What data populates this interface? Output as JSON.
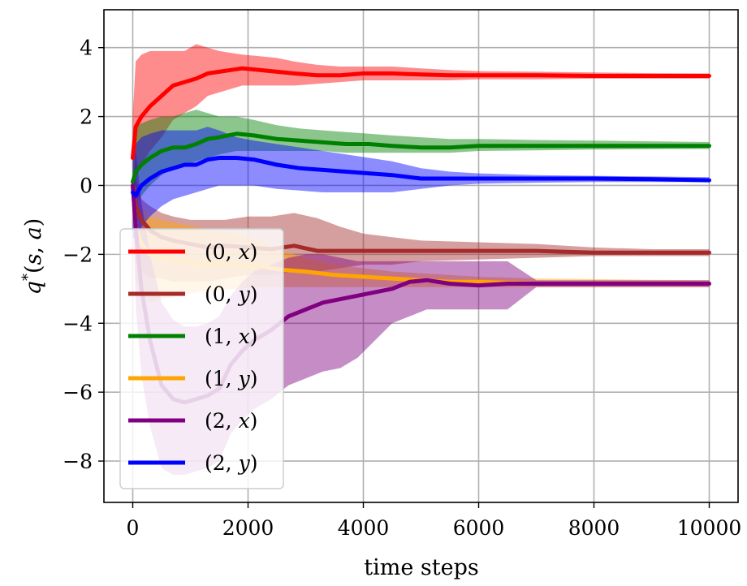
{
  "chart_data": {
    "type": "line",
    "title": "",
    "xlabel": "time steps",
    "ylabel": "q*(s, a)",
    "xlim": [
      -500,
      10500
    ],
    "ylim": [
      -9.2,
      5.1
    ],
    "xticks": [
      0,
      2000,
      4000,
      6000,
      8000,
      10000
    ],
    "yticks": [
      4,
      2,
      0,
      -2,
      -4,
      -6,
      -8
    ],
    "xtick_labels": [
      "0",
      "2000",
      "4000",
      "6000",
      "8000",
      "10000"
    ],
    "ytick_labels": [
      "4",
      "2",
      "0",
      "−2",
      "−4",
      "−6",
      "−8"
    ],
    "grid": true,
    "legend_position": "lower-left",
    "series": [
      {
        "name": "(0,x)",
        "color": "#ff0000",
        "x": [
          0,
          50,
          150,
          300,
          500,
          700,
          900,
          1100,
          1300,
          1500,
          1700,
          1900,
          2200,
          2500,
          2800,
          3200,
          3600,
          4000,
          4500,
          5000,
          5500,
          6000,
          7000,
          8000,
          9000,
          10000
        ],
        "y": [
          0.8,
          1.7,
          2.0,
          2.3,
          2.6,
          2.9,
          3.0,
          3.1,
          3.25,
          3.3,
          3.35,
          3.4,
          3.35,
          3.3,
          3.25,
          3.2,
          3.2,
          3.25,
          3.25,
          3.22,
          3.2,
          3.2,
          3.2,
          3.18,
          3.18,
          3.18
        ],
        "lower": [
          -1.0,
          0.2,
          0.6,
          1.0,
          1.4,
          1.9,
          2.1,
          2.3,
          2.6,
          2.7,
          2.8,
          2.9,
          2.9,
          2.9,
          2.9,
          2.95,
          3.0,
          3.05,
          3.05,
          3.05,
          3.05,
          3.08,
          3.08,
          3.1,
          3.1,
          3.1
        ],
        "upper": [
          2.0,
          3.6,
          3.8,
          3.9,
          3.9,
          3.9,
          3.9,
          4.1,
          4.0,
          3.9,
          3.85,
          3.8,
          3.75,
          3.7,
          3.6,
          3.5,
          3.45,
          3.45,
          3.45,
          3.4,
          3.35,
          3.32,
          3.3,
          3.28,
          3.26,
          3.25
        ]
      },
      {
        "name": "(0,y)",
        "color": "#a52a2a",
        "x": [
          0,
          50,
          150,
          300,
          500,
          700,
          1000,
          1300,
          1600,
          2000,
          2400,
          2800,
          3200,
          3600,
          4000,
          4500,
          5000,
          6000,
          7000,
          8000,
          9000,
          10000
        ],
        "y": [
          0,
          -0.6,
          -1.0,
          -1.3,
          -1.5,
          -1.6,
          -1.7,
          -1.8,
          -1.75,
          -1.8,
          -1.85,
          -1.75,
          -1.9,
          -1.9,
          -1.9,
          -1.9,
          -1.9,
          -1.9,
          -1.9,
          -1.95,
          -1.95,
          -1.95
        ],
        "lower": [
          0,
          -2.2,
          -2.5,
          -2.7,
          -2.7,
          -2.8,
          -2.8,
          -2.8,
          -2.7,
          -2.6,
          -2.6,
          -2.5,
          -2.5,
          -2.4,
          -2.3,
          -2.3,
          -2.2,
          -2.15,
          -2.1,
          -2.05,
          -2.05,
          -2.05
        ],
        "upper": [
          0,
          0.2,
          -0.4,
          -0.6,
          -0.8,
          -0.9,
          -1.0,
          -1.0,
          -1.0,
          -0.9,
          -0.9,
          -0.8,
          -0.95,
          -1.2,
          -1.4,
          -1.5,
          -1.6,
          -1.65,
          -1.7,
          -1.8,
          -1.85,
          -1.85
        ]
      },
      {
        "name": "(1,x)",
        "color": "#008000",
        "x": [
          0,
          50,
          150,
          300,
          500,
          700,
          900,
          1100,
          1300,
          1500,
          1800,
          2100,
          2500,
          2900,
          3300,
          3700,
          4100,
          4500,
          5000,
          5500,
          6000,
          7000,
          8000,
          9000,
          10000
        ],
        "y": [
          0.1,
          0.4,
          0.6,
          0.8,
          1.0,
          1.1,
          1.1,
          1.2,
          1.35,
          1.4,
          1.5,
          1.45,
          1.35,
          1.3,
          1.25,
          1.2,
          1.2,
          1.15,
          1.1,
          1.1,
          1.15,
          1.15,
          1.15,
          1.15,
          1.15
        ],
        "lower": [
          -0.8,
          -0.5,
          -0.3,
          0.0,
          0.3,
          0.5,
          0.6,
          0.7,
          0.8,
          0.9,
          1.0,
          1.0,
          1.0,
          1.0,
          1.0,
          0.95,
          0.95,
          0.95,
          0.95,
          0.95,
          1.0,
          1.02,
          1.04,
          1.05,
          1.06
        ],
        "upper": [
          1.0,
          1.7,
          1.8,
          1.9,
          2.0,
          2.0,
          2.1,
          2.2,
          2.1,
          2.0,
          2.0,
          1.9,
          1.75,
          1.65,
          1.6,
          1.55,
          1.5,
          1.45,
          1.4,
          1.35,
          1.35,
          1.32,
          1.3,
          1.28,
          1.26
        ]
      },
      {
        "name": "(1,y)",
        "color": "#ffa500",
        "x": [
          0,
          50,
          150,
          300,
          500,
          800,
          1100,
          1400,
          1800,
          2200,
          2600,
          3000,
          3500,
          4000,
          4500,
          5000,
          5500,
          6000,
          7000,
          8000,
          9000,
          10000
        ],
        "y": [
          0,
          -1.2,
          -1.7,
          -2.0,
          -2.1,
          -2.2,
          -2.25,
          -2.3,
          -2.3,
          -2.35,
          -2.45,
          -2.5,
          -2.6,
          -2.65,
          -2.7,
          -2.75,
          -2.8,
          -2.8,
          -2.85,
          -2.85,
          -2.85,
          -2.85
        ],
        "lower": [
          0,
          -2.8,
          -3.2,
          -3.4,
          -3.3,
          -3.2,
          -3.1,
          -3.05,
          -3.0,
          -2.95,
          -2.95,
          -2.95,
          -2.95,
          -2.95,
          -2.95,
          -2.95,
          -2.95,
          -2.95,
          -2.95,
          -2.95,
          -2.95,
          -2.95
        ],
        "upper": [
          0,
          0.0,
          -0.6,
          -0.9,
          -1.0,
          -1.1,
          -1.2,
          -1.3,
          -1.4,
          -1.6,
          -1.9,
          -2.1,
          -2.3,
          -2.4,
          -2.5,
          -2.55,
          -2.6,
          -2.65,
          -2.7,
          -2.72,
          -2.74,
          -2.75
        ]
      },
      {
        "name": "(2,x)",
        "color": "#800080",
        "x": [
          0,
          50,
          150,
          300,
          500,
          700,
          900,
          1100,
          1300,
          1500,
          1700,
          1900,
          2100,
          2400,
          2700,
          3000,
          3300,
          3600,
          3900,
          4200,
          4500,
          4800,
          5100,
          5500,
          6000,
          6500,
          7000,
          8000,
          9000,
          10000
        ],
        "y": [
          0,
          -1.2,
          -3.0,
          -4.5,
          -5.8,
          -6.2,
          -6.3,
          -6.2,
          -6.1,
          -5.9,
          -5.2,
          -4.8,
          -4.5,
          -4.2,
          -3.8,
          -3.6,
          -3.4,
          -3.3,
          -3.2,
          -3.1,
          -3.0,
          -2.8,
          -2.75,
          -2.85,
          -2.9,
          -2.85,
          -2.85,
          -2.85,
          -2.85,
          -2.85
        ],
        "lower": [
          0,
          -3.5,
          -5.5,
          -7.0,
          -8.2,
          -8.4,
          -8.4,
          -8.3,
          -8.2,
          -8.0,
          -7.2,
          -6.8,
          -6.5,
          -6.2,
          -5.8,
          -5.6,
          -5.4,
          -5.3,
          -5.0,
          -4.5,
          -4.0,
          -3.8,
          -3.6,
          -3.6,
          -3.6,
          -3.6,
          -2.95,
          -2.95,
          -2.95,
          -2.95
        ],
        "upper": [
          0,
          1.0,
          -0.5,
          -2.0,
          -3.4,
          -3.9,
          -4.1,
          -4.1,
          -4.0,
          -3.8,
          -3.2,
          -2.8,
          -2.5,
          -2.3,
          -2.1,
          -2.0,
          -2.0,
          -2.1,
          -2.2,
          -2.2,
          -2.2,
          -2.2,
          -2.2,
          -2.2,
          -2.2,
          -2.2,
          -2.75,
          -2.75,
          -2.75,
          -2.75
        ]
      },
      {
        "name": "(2,y)",
        "color": "#0000ff",
        "x": [
          0,
          50,
          150,
          300,
          500,
          700,
          900,
          1100,
          1300,
          1500,
          1800,
          2100,
          2500,
          2900,
          3300,
          3700,
          4100,
          4500,
          5000,
          5500,
          6000,
          7000,
          8000,
          9000,
          10000
        ],
        "y": [
          -0.2,
          -0.3,
          0.0,
          0.2,
          0.4,
          0.5,
          0.6,
          0.6,
          0.75,
          0.8,
          0.8,
          0.75,
          0.6,
          0.5,
          0.45,
          0.4,
          0.35,
          0.3,
          0.2,
          0.2,
          0.2,
          0.2,
          0.2,
          0.18,
          0.15
        ],
        "lower": [
          -1.5,
          -1.6,
          -1.2,
          -0.9,
          -0.6,
          -0.4,
          -0.3,
          -0.2,
          -0.1,
          0.0,
          0.0,
          0.0,
          -0.1,
          -0.15,
          -0.2,
          -0.2,
          -0.2,
          -0.2,
          -0.1,
          0.0,
          0.05,
          0.08,
          0.1,
          0.1,
          0.1
        ],
        "upper": [
          0.8,
          1.2,
          1.4,
          1.5,
          1.6,
          1.6,
          1.6,
          1.6,
          1.7,
          1.6,
          1.4,
          1.3,
          1.2,
          1.1,
          1.0,
          0.9,
          0.8,
          0.7,
          0.5,
          0.4,
          0.35,
          0.3,
          0.28,
          0.26,
          0.24
        ]
      }
    ]
  }
}
